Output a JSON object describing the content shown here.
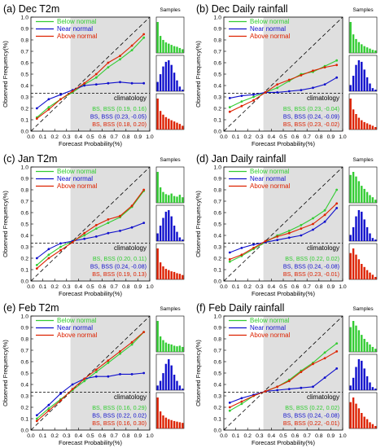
{
  "figure": {
    "xlabel": "Forecast Probability(%)",
    "ylabel": "Observed Frequency(%)",
    "samples_title": "Samples",
    "climatology_label": "climatology",
    "legend": [
      "Below normal",
      "Near normal",
      "Above normal"
    ],
    "colors": {
      "below": "#33cc33",
      "near": "#1010cc",
      "above": "#dd2200",
      "shade": "#dcdcdc"
    }
  },
  "chart_data": [
    {
      "type": "line",
      "panel": "(a)",
      "title": "Dec  T2m",
      "x": [
        0.05,
        0.15,
        0.25,
        0.35,
        0.45,
        0.55,
        0.65,
        0.75,
        0.85,
        0.95
      ],
      "xlim": [
        0,
        1
      ],
      "ylim": [
        0,
        1
      ],
      "climatology": 0.333,
      "series": [
        {
          "name": "Below normal",
          "values": [
            0.12,
            0.21,
            0.28,
            0.34,
            0.41,
            0.47,
            0.56,
            0.63,
            0.71,
            0.82
          ]
        },
        {
          "name": "Near normal",
          "values": [
            0.2,
            0.28,
            0.32,
            0.36,
            0.4,
            0.41,
            0.42,
            0.43,
            0.42,
            0.42
          ]
        },
        {
          "name": "Above normal",
          "values": [
            0.11,
            0.19,
            0.28,
            0.35,
            0.42,
            0.5,
            0.6,
            0.66,
            0.75,
            0.85
          ]
        }
      ],
      "scores": [
        "BS, BSS (0.19, 0.16)",
        "BS, BSS (0.23, -0.05)",
        "BS, BSS (0.18, 0.20)"
      ],
      "samples": {
        "below": [
          1.0,
          0.55,
          0.42,
          0.34,
          0.3,
          0.26,
          0.22,
          0.2,
          0.16,
          0.12
        ],
        "near": [
          0.3,
          0.55,
          0.8,
          0.95,
          1.0,
          0.85,
          0.6,
          0.35,
          0.15,
          0.05
        ],
        "above": [
          1.0,
          0.6,
          0.48,
          0.4,
          0.35,
          0.3,
          0.26,
          0.22,
          0.18,
          0.12
        ]
      }
    },
    {
      "type": "line",
      "panel": "(b)",
      "title": "Dec  Daily rainfall",
      "x": [
        0.05,
        0.15,
        0.25,
        0.35,
        0.45,
        0.55,
        0.65,
        0.75,
        0.85,
        0.95
      ],
      "xlim": [
        0,
        1
      ],
      "ylim": [
        0,
        1
      ],
      "climatology": 0.333,
      "series": [
        {
          "name": "Below normal",
          "values": [
            0.21,
            0.26,
            0.3,
            0.34,
            0.38,
            0.44,
            0.5,
            0.52,
            0.57,
            0.62
          ]
        },
        {
          "name": "Near normal",
          "values": [
            0.29,
            0.31,
            0.32,
            0.34,
            0.34,
            0.35,
            0.36,
            0.38,
            0.41,
            0.47
          ]
        },
        {
          "name": "Above normal",
          "values": [
            0.17,
            0.22,
            0.27,
            0.34,
            0.41,
            0.45,
            0.49,
            0.53,
            0.56,
            0.58
          ]
        }
      ],
      "scores": [
        "BS, BSS (0.23, -0.04)",
        "BS, BSS (0.24, -0.09)",
        "BS, BSS (0.23, -0.02)"
      ],
      "samples": {
        "below": [
          1.0,
          0.6,
          0.45,
          0.35,
          0.28,
          0.22,
          0.18,
          0.14,
          0.1,
          0.08
        ],
        "near": [
          0.2,
          0.5,
          0.85,
          1.0,
          0.95,
          0.7,
          0.45,
          0.25,
          0.1,
          0.05
        ],
        "above": [
          1.0,
          0.65,
          0.5,
          0.38,
          0.3,
          0.24,
          0.2,
          0.16,
          0.12,
          0.08
        ]
      }
    },
    {
      "type": "line",
      "panel": "(c)",
      "title": "Jan  T2m",
      "x": [
        0.05,
        0.15,
        0.25,
        0.35,
        0.45,
        0.55,
        0.65,
        0.75,
        0.85,
        0.95
      ],
      "xlim": [
        0,
        1
      ],
      "ylim": [
        0,
        1
      ],
      "climatology": 0.333,
      "series": [
        {
          "name": "Below normal",
          "values": [
            0.14,
            0.23,
            0.3,
            0.35,
            0.4,
            0.46,
            0.51,
            0.56,
            0.65,
            0.79
          ]
        },
        {
          "name": "Near normal",
          "values": [
            0.2,
            0.28,
            0.33,
            0.35,
            0.37,
            0.39,
            0.42,
            0.44,
            0.47,
            0.51
          ]
        },
        {
          "name": "Above normal",
          "values": [
            0.11,
            0.2,
            0.27,
            0.34,
            0.42,
            0.49,
            0.54,
            0.57,
            0.66,
            0.8
          ]
        }
      ],
      "scores": [
        "BS, BSS (0.20, 0.11)",
        "BS, BSS (0.24, -0.08)",
        "BS, BSS (0.19, 0.13)"
      ],
      "samples": {
        "below": [
          1.0,
          0.5,
          0.35,
          0.28,
          0.25,
          0.3,
          0.22,
          0.2,
          0.26,
          0.18
        ],
        "near": [
          0.25,
          0.5,
          0.75,
          0.95,
          1.0,
          0.8,
          0.5,
          0.3,
          0.12,
          0.05
        ],
        "above": [
          1.0,
          0.55,
          0.42,
          0.34,
          0.3,
          0.26,
          0.24,
          0.2,
          0.18,
          0.14
        ]
      }
    },
    {
      "type": "line",
      "panel": "(d)",
      "title": "Jan  Daily rainfall",
      "x": [
        0.05,
        0.15,
        0.25,
        0.35,
        0.45,
        0.55,
        0.65,
        0.75,
        0.85,
        0.95
      ],
      "xlim": [
        0,
        1
      ],
      "ylim": [
        0,
        1
      ],
      "climatology": 0.333,
      "series": [
        {
          "name": "Below normal",
          "values": [
            0.17,
            0.22,
            0.28,
            0.34,
            0.4,
            0.44,
            0.49,
            0.55,
            0.62,
            0.8
          ]
        },
        {
          "name": "Near normal",
          "values": [
            0.25,
            0.29,
            0.32,
            0.34,
            0.36,
            0.38,
            0.4,
            0.45,
            0.52,
            0.64
          ]
        },
        {
          "name": "Above normal",
          "values": [
            0.19,
            0.23,
            0.29,
            0.35,
            0.39,
            0.42,
            0.46,
            0.5,
            0.58,
            0.68
          ]
        }
      ],
      "scores": [
        "BS, BSS (0.22, 0.02)",
        "BS, BSS (0.24, -0.08)",
        "BS, BSS (0.23, -0.01)"
      ],
      "samples": {
        "below": [
          0.9,
          1.0,
          0.85,
          0.7,
          0.55,
          0.45,
          0.35,
          0.25,
          0.18,
          0.1
        ],
        "near": [
          0.2,
          0.45,
          0.8,
          1.0,
          0.95,
          0.7,
          0.45,
          0.25,
          0.1,
          0.05
        ],
        "above": [
          0.85,
          1.0,
          0.8,
          0.65,
          0.5,
          0.4,
          0.3,
          0.22,
          0.15,
          0.08
        ]
      }
    },
    {
      "type": "line",
      "panel": "(e)",
      "title": "Feb  T2m",
      "x": [
        0.05,
        0.15,
        0.25,
        0.35,
        0.45,
        0.55,
        0.65,
        0.75,
        0.85,
        0.95
      ],
      "xlim": [
        0,
        1
      ],
      "ylim": [
        0,
        1
      ],
      "climatology": 0.333,
      "series": [
        {
          "name": "Below normal",
          "values": [
            0.1,
            0.19,
            0.27,
            0.35,
            0.43,
            0.51,
            0.59,
            0.67,
            0.75,
            0.86
          ]
        },
        {
          "name": "Near normal",
          "values": [
            0.13,
            0.22,
            0.32,
            0.4,
            0.45,
            0.47,
            0.47,
            0.49,
            0.49,
            0.5
          ]
        },
        {
          "name": "Above normal",
          "values": [
            0.08,
            0.17,
            0.26,
            0.36,
            0.45,
            0.53,
            0.61,
            0.69,
            0.77,
            0.86
          ]
        }
      ],
      "scores": [
        "BS, BSS (0.16, 0.29)",
        "BS, BSS (0.22, 0.02)",
        "BS, BSS (0.16, 0.30)"
      ],
      "samples": {
        "below": [
          1.0,
          0.5,
          0.38,
          0.3,
          0.26,
          0.24,
          0.2,
          0.18,
          0.2,
          0.16
        ],
        "near": [
          0.15,
          0.3,
          0.55,
          0.85,
          1.0,
          0.8,
          0.5,
          0.3,
          0.15,
          0.05
        ],
        "above": [
          1.0,
          0.55,
          0.42,
          0.35,
          0.3,
          0.27,
          0.24,
          0.22,
          0.2,
          0.18
        ]
      }
    },
    {
      "type": "line",
      "panel": "(f)",
      "title": "Feb  Daily rainfall",
      "x": [
        0.05,
        0.15,
        0.25,
        0.35,
        0.45,
        0.55,
        0.65,
        0.75,
        0.85,
        0.95
      ],
      "xlim": [
        0,
        1
      ],
      "ylim": [
        0,
        1
      ],
      "climatology": 0.333,
      "series": [
        {
          "name": "Below normal",
          "values": [
            0.17,
            0.23,
            0.3,
            0.34,
            0.38,
            0.44,
            0.52,
            0.59,
            0.68,
            0.76
          ]
        },
        {
          "name": "Near normal",
          "values": [
            0.24,
            0.28,
            0.31,
            0.34,
            0.35,
            0.36,
            0.37,
            0.38,
            0.46,
            0.54
          ]
        },
        {
          "name": "Above normal",
          "values": [
            0.2,
            0.25,
            0.3,
            0.34,
            0.38,
            0.43,
            0.51,
            0.58,
            0.63,
            0.69
          ]
        }
      ],
      "scores": [
        "BS, BSS (0.22, 0.02)",
        "BS, BSS (0.24, -0.08)",
        "BS, BSS (0.22, -0.01)"
      ],
      "samples": {
        "below": [
          0.8,
          1.0,
          0.85,
          0.7,
          0.55,
          0.42,
          0.32,
          0.24,
          0.16,
          0.1
        ],
        "near": [
          0.15,
          0.4,
          0.75,
          1.0,
          0.95,
          0.7,
          0.45,
          0.25,
          0.1,
          0.05
        ],
        "above": [
          0.85,
          1.0,
          0.8,
          0.65,
          0.5,
          0.38,
          0.3,
          0.2,
          0.14,
          0.08
        ]
      }
    }
  ]
}
